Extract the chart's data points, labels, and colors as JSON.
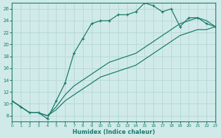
{
  "xlabel": "Humidex (Indice chaleur)",
  "ylabel": "",
  "bg_color": "#d0eaea",
  "grid_color": "#b8d8d8",
  "line_color": "#1a7a6a",
  "xlim": [
    0,
    23
  ],
  "ylim": [
    7,
    27
  ],
  "xticks": [
    0,
    1,
    2,
    3,
    4,
    5,
    6,
    7,
    8,
    9,
    10,
    11,
    12,
    13,
    14,
    15,
    16,
    17,
    18,
    19,
    20,
    21,
    22,
    23
  ],
  "yticks": [
    8,
    10,
    12,
    14,
    16,
    18,
    20,
    22,
    24,
    26
  ],
  "series1_x": [
    0,
    1,
    2,
    3,
    4,
    5,
    6,
    7,
    8,
    9,
    10,
    11,
    12,
    13,
    14,
    15,
    16,
    17,
    18,
    19,
    20,
    21,
    22,
    23
  ],
  "series1_y": [
    10.5,
    9.5,
    8.5,
    8.5,
    7.5,
    10.5,
    13.5,
    18.5,
    21.0,
    23.5,
    24.0,
    24.0,
    25.0,
    25.0,
    25.5,
    27.0,
    26.5,
    25.5,
    26.0,
    23.0,
    24.5,
    24.5,
    23.5,
    23.0
  ],
  "series2_x": [
    0,
    1,
    2,
    3,
    4,
    5,
    6,
    7,
    8,
    9,
    10,
    11,
    12,
    13,
    14,
    15,
    16,
    17,
    18,
    19,
    20,
    21,
    22,
    23
  ],
  "series2_y": [
    10.5,
    9.5,
    8.5,
    8.5,
    8.0,
    9.0,
    10.5,
    11.5,
    12.5,
    13.5,
    14.5,
    15.0,
    15.5,
    16.0,
    16.5,
    17.5,
    18.5,
    19.5,
    20.5,
    21.5,
    22.0,
    22.5,
    22.5,
    23.0
  ],
  "series3_x": [
    0,
    1,
    2,
    3,
    4,
    5,
    6,
    7,
    8,
    9,
    10,
    11,
    12,
    13,
    14,
    15,
    16,
    17,
    18,
    19,
    20,
    21,
    22,
    23
  ],
  "series3_y": [
    10.5,
    9.5,
    8.5,
    8.5,
    8.0,
    9.5,
    11.5,
    13.0,
    14.0,
    15.0,
    16.0,
    17.0,
    17.5,
    18.0,
    18.5,
    19.5,
    20.5,
    21.5,
    22.5,
    23.5,
    24.0,
    24.5,
    24.0,
    23.0
  ]
}
